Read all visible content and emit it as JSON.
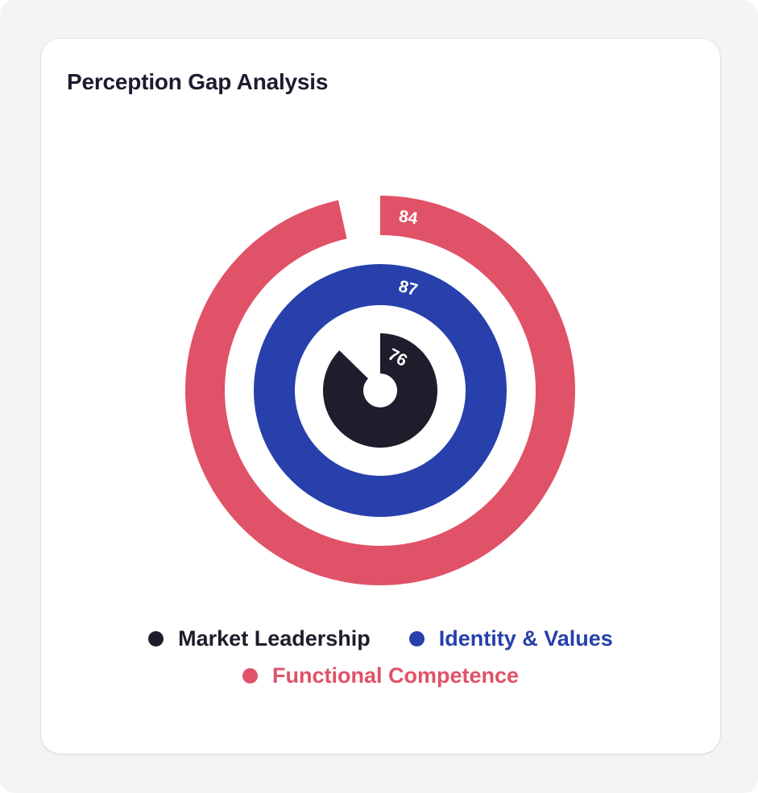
{
  "card": {
    "title": "Perception Gap Analysis"
  },
  "colors": {
    "background": "#f3f4f6",
    "card": "#ffffff",
    "title": "#1d1b2e",
    "market_leadership": "#1f1d2b",
    "identity_values": "#2740ab",
    "functional_competence": "#e05267"
  },
  "chart_data": {
    "type": "radial-bar",
    "title": "Perception Gap Analysis",
    "domain_max": 87,
    "start_angle_deg": 0,
    "direction": "clockwise",
    "series": [
      {
        "name": "Market Leadership",
        "value": 76,
        "color": "#1f1d2b",
        "ring": "inner",
        "inner_radius": 21,
        "outer_radius": 71
      },
      {
        "name": "Identity & Values",
        "value": 87,
        "color": "#2740ab",
        "ring": "middle",
        "inner_radius": 106,
        "outer_radius": 157
      },
      {
        "name": "Functional Competence",
        "value": 84,
        "color": "#e05267",
        "ring": "outer",
        "inner_radius": 193,
        "outer_radius": 242
      }
    ],
    "legend": {
      "position": "bottom",
      "entries": [
        "Market Leadership",
        "Identity & Values",
        "Functional Competence"
      ]
    },
    "grid": false
  },
  "legend": {
    "items": [
      {
        "label": "Market Leadership",
        "color": "#1f1d2b"
      },
      {
        "label": "Identity & Values",
        "color": "#2740ab"
      },
      {
        "label": "Functional Competence",
        "color": "#e05267"
      }
    ]
  }
}
